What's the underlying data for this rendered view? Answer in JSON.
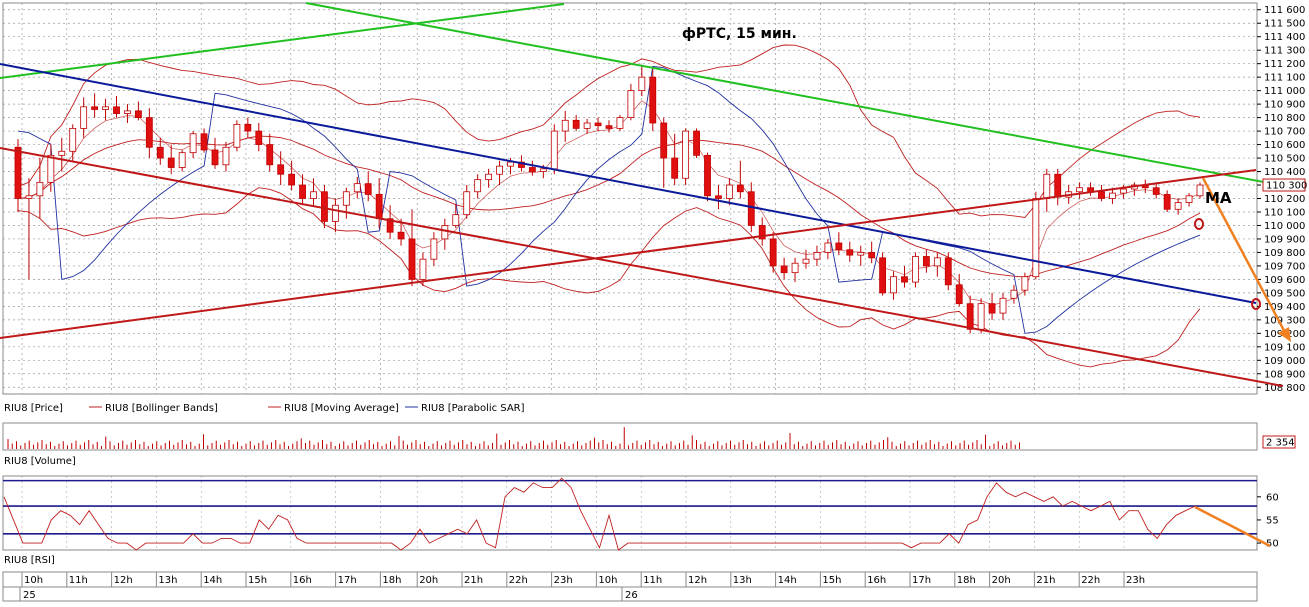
{
  "colors": {
    "bull": "#ffffff",
    "bear": "#e01010",
    "candle_outline": "#c00000",
    "bollinger": "#c02020",
    "sar": "#2030a0",
    "volume": "#c00000",
    "rsi": "#c02020",
    "rsi_level": "#1a1a8a",
    "green_trend": "#20c020",
    "blue_trend": "#0a1a9a",
    "red_trend": "#c01818",
    "orange_arrow": "#f08020",
    "grid": "#9a9a9a"
  },
  "chart_data": {
    "type": "candlestick",
    "title": "фРТС, 15 мин.",
    "annotation_ma": "MA",
    "price_axis": {
      "ylim": [
        108750,
        111650
      ],
      "ticks": [
        "111 600",
        "111 500",
        "111 400",
        "111 300",
        "111 200",
        "111 100",
        "111 000",
        "110 900",
        "110 800",
        "110 700",
        "110 600",
        "110 500",
        "110 400",
        "110 300",
        "110 200",
        "110 100",
        "110 000",
        "109 900",
        "109 800",
        "109 700",
        "109 600",
        "109 500",
        "109 400",
        "109 300",
        "109 200",
        "109 100",
        "109 000",
        "108 900",
        "108 800"
      ],
      "ticks_val": [
        111600,
        111500,
        111400,
        111300,
        111200,
        111100,
        111000,
        110900,
        110800,
        110700,
        110600,
        110500,
        110400,
        110300,
        110200,
        110100,
        110000,
        109900,
        109800,
        109700,
        109600,
        109500,
        109400,
        109300,
        109200,
        109100,
        109000,
        108900,
        108800
      ],
      "last_price_label": "110 300",
      "last_price": 110300
    },
    "legend": [
      "RIU8 [Price]",
      "RIU8 [Bollinger Bands]",
      "RIU8 [Moving Average]",
      "RIU8 [Parabolic SAR]"
    ],
    "volume_panel": {
      "label": "RIU8 [Volume]",
      "last_value": "2 354"
    },
    "rsi_panel": {
      "label": "RIU8 [RSI]",
      "ticks": [
        "60",
        "55",
        "50"
      ],
      "ticks_val": [
        60,
        55,
        50
      ],
      "levels": [
        63.5,
        58,
        52
      ],
      "ylim": [
        48.5,
        64.5
      ],
      "values": [
        60,
        55,
        50,
        50,
        50,
        55,
        57,
        56,
        54,
        57,
        54,
        51,
        50,
        50,
        48,
        50,
        50,
        50,
        50,
        50,
        52,
        50,
        50,
        51,
        51,
        50,
        50,
        55,
        53,
        56,
        55,
        51,
        50,
        50,
        50,
        50,
        50,
        50,
        50,
        50,
        50,
        50,
        48,
        50,
        53,
        50,
        51,
        52,
        53,
        52,
        55,
        50,
        49,
        60,
        62,
        61,
        63,
        62,
        62,
        64,
        62,
        57,
        53,
        49,
        56,
        48,
        50,
        50,
        50,
        50,
        50,
        50,
        50,
        50,
        50,
        50,
        50,
        50,
        50,
        50,
        50,
        50,
        50,
        50,
        50,
        50,
        50,
        50,
        50,
        50,
        50,
        50,
        50,
        50,
        50,
        50,
        49,
        50,
        50,
        50,
        52,
        50,
        54,
        55,
        60,
        63,
        61,
        60,
        61,
        60,
        59,
        60,
        58,
        59,
        58,
        57,
        58,
        59,
        55,
        57,
        57,
        53,
        51,
        54,
        56,
        57,
        58
      ]
    },
    "time_axis": {
      "hours": [
        "10h",
        "11h",
        "12h",
        "13h",
        "14h",
        "15h",
        "16h",
        "17h",
        "18h",
        "20h",
        "21h",
        "22h",
        "23h",
        "10h",
        "11h",
        "12h",
        "13h",
        "14h",
        "15h",
        "16h",
        "17h",
        "18h",
        "20h",
        "21h",
        "22h",
        "23h"
      ],
      "dates": [
        "25",
        "26"
      ]
    },
    "candles": [
      [
        110580,
        110640,
        110100,
        110200
      ],
      [
        110200,
        110350,
        109600,
        110220
      ],
      [
        110220,
        110500,
        110050,
        110320
      ],
      [
        110320,
        110600,
        110250,
        110520
      ],
      [
        110520,
        110650,
        110400,
        110550
      ],
      [
        110550,
        110750,
        110480,
        110720
      ],
      [
        110720,
        110950,
        110650,
        110880
      ],
      [
        110880,
        110980,
        110800,
        110860
      ],
      [
        110860,
        110940,
        110780,
        110880
      ],
      [
        110880,
        110960,
        110800,
        110830
      ],
      [
        110830,
        110900,
        110760,
        110850
      ],
      [
        110850,
        110920,
        110780,
        110800
      ],
      [
        110800,
        110870,
        110500,
        110580
      ],
      [
        110580,
        110650,
        110450,
        110500
      ],
      [
        110500,
        110600,
        110380,
        110430
      ],
      [
        110430,
        110560,
        110400,
        110540
      ],
      [
        110540,
        110700,
        110500,
        110680
      ],
      [
        110680,
        110720,
        110540,
        110560
      ],
      [
        110560,
        110650,
        110420,
        110450
      ],
      [
        110450,
        110620,
        110400,
        110580
      ],
      [
        110580,
        110780,
        110550,
        110750
      ],
      [
        110750,
        110800,
        110650,
        110700
      ],
      [
        110700,
        110760,
        110550,
        110600
      ],
      [
        110600,
        110680,
        110400,
        110450
      ],
      [
        110450,
        110550,
        110300,
        110380
      ],
      [
        110380,
        110480,
        110260,
        110300
      ],
      [
        110300,
        110380,
        110150,
        110200
      ],
      [
        110200,
        110350,
        110150,
        110250
      ],
      [
        110250,
        110300,
        109980,
        110030
      ],
      [
        110030,
        110200,
        109950,
        110150
      ],
      [
        110150,
        110280,
        110050,
        110250
      ],
      [
        110250,
        110360,
        110200,
        110310
      ],
      [
        110310,
        110400,
        110180,
        110230
      ],
      [
        110230,
        110350,
        109980,
        110050
      ],
      [
        110050,
        110150,
        109900,
        109950
      ],
      [
        109950,
        110050,
        109850,
        109900
      ],
      [
        109900,
        110120,
        109550,
        109600
      ],
      [
        109600,
        109800,
        109550,
        109750
      ],
      [
        109750,
        109950,
        109700,
        109900
      ],
      [
        109900,
        110050,
        109820,
        110000
      ],
      [
        110000,
        110160,
        109980,
        110080
      ],
      [
        110080,
        110300,
        110050,
        110250
      ],
      [
        110250,
        110380,
        110200,
        110340
      ],
      [
        110340,
        110420,
        110280,
        110380
      ],
      [
        110380,
        110480,
        110300,
        110440
      ],
      [
        110440,
        110500,
        110380,
        110470
      ],
      [
        110470,
        110520,
        110400,
        110430
      ],
      [
        110430,
        110480,
        110370,
        110400
      ],
      [
        110400,
        110450,
        110350,
        110420
      ],
      [
        110420,
        110750,
        110380,
        110700
      ],
      [
        110700,
        110850,
        110620,
        110780
      ],
      [
        110780,
        110820,
        110700,
        110720
      ],
      [
        110720,
        110790,
        110680,
        110760
      ],
      [
        110760,
        110800,
        110700,
        110740
      ],
      [
        110740,
        110780,
        110690,
        110720
      ],
      [
        110720,
        110820,
        110700,
        110800
      ],
      [
        110800,
        111050,
        110780,
        111000
      ],
      [
        111000,
        111180,
        110960,
        111100
      ],
      [
        111100,
        111160,
        110700,
        110760
      ],
      [
        110760,
        110800,
        110280,
        110500
      ],
      [
        110500,
        110680,
        110300,
        110350
      ],
      [
        110350,
        110720,
        110300,
        110700
      ],
      [
        110700,
        110720,
        110500,
        110520
      ],
      [
        110520,
        110540,
        110180,
        110220
      ],
      [
        110220,
        110300,
        110120,
        110200
      ],
      [
        110200,
        110350,
        110150,
        110300
      ],
      [
        110300,
        110480,
        110200,
        110250
      ],
      [
        110250,
        110320,
        109950,
        110000
      ],
      [
        110000,
        110060,
        109850,
        109900
      ],
      [
        109900,
        109950,
        109650,
        109700
      ],
      [
        109700,
        109760,
        109600,
        109650
      ],
      [
        109650,
        109760,
        109580,
        109720
      ],
      [
        109720,
        109820,
        109680,
        109750
      ],
      [
        109750,
        109850,
        109700,
        109800
      ],
      [
        109800,
        109900,
        109750,
        109870
      ],
      [
        109870,
        109950,
        109780,
        109820
      ],
      [
        109820,
        109880,
        109730,
        109780
      ],
      [
        109780,
        109850,
        109700,
        109800
      ],
      [
        109800,
        109880,
        109720,
        109760
      ],
      [
        109760,
        109800,
        109480,
        109500
      ],
      [
        109500,
        109660,
        109450,
        109620
      ],
      [
        109620,
        109700,
        109540,
        109580
      ],
      [
        109580,
        109800,
        109540,
        109770
      ],
      [
        109770,
        109820,
        109650,
        109700
      ],
      [
        109700,
        109800,
        109620,
        109760
      ],
      [
        109760,
        109800,
        109520,
        109560
      ],
      [
        109560,
        109640,
        109400,
        109420
      ],
      [
        109420,
        109480,
        109200,
        109230
      ],
      [
        109230,
        109460,
        109200,
        109420
      ],
      [
        109420,
        109500,
        109300,
        109350
      ],
      [
        109350,
        109500,
        109300,
        109460
      ],
      [
        109460,
        109560,
        109420,
        109520
      ],
      [
        109520,
        109650,
        109480,
        109620
      ],
      [
        109620,
        110250,
        109600,
        110200
      ],
      [
        110200,
        110420,
        110100,
        110380
      ],
      [
        110380,
        110420,
        110150,
        110210
      ],
      [
        110210,
        110300,
        110160,
        110250
      ],
      [
        110250,
        110320,
        110200,
        110280
      ],
      [
        110280,
        110320,
        110220,
        110250
      ],
      [
        110250,
        110300,
        110180,
        110200
      ],
      [
        110200,
        110280,
        110160,
        110240
      ],
      [
        110240,
        110300,
        110200,
        110270
      ],
      [
        110270,
        110320,
        110220,
        110300
      ],
      [
        110300,
        110340,
        110240,
        110280
      ],
      [
        110280,
        110320,
        110200,
        110230
      ],
      [
        110230,
        110260,
        110100,
        110120
      ],
      [
        110120,
        110200,
        110080,
        110170
      ],
      [
        110170,
        110240,
        110140,
        110220
      ],
      [
        110220,
        110320,
        110200,
        110300
      ]
    ]
  }
}
